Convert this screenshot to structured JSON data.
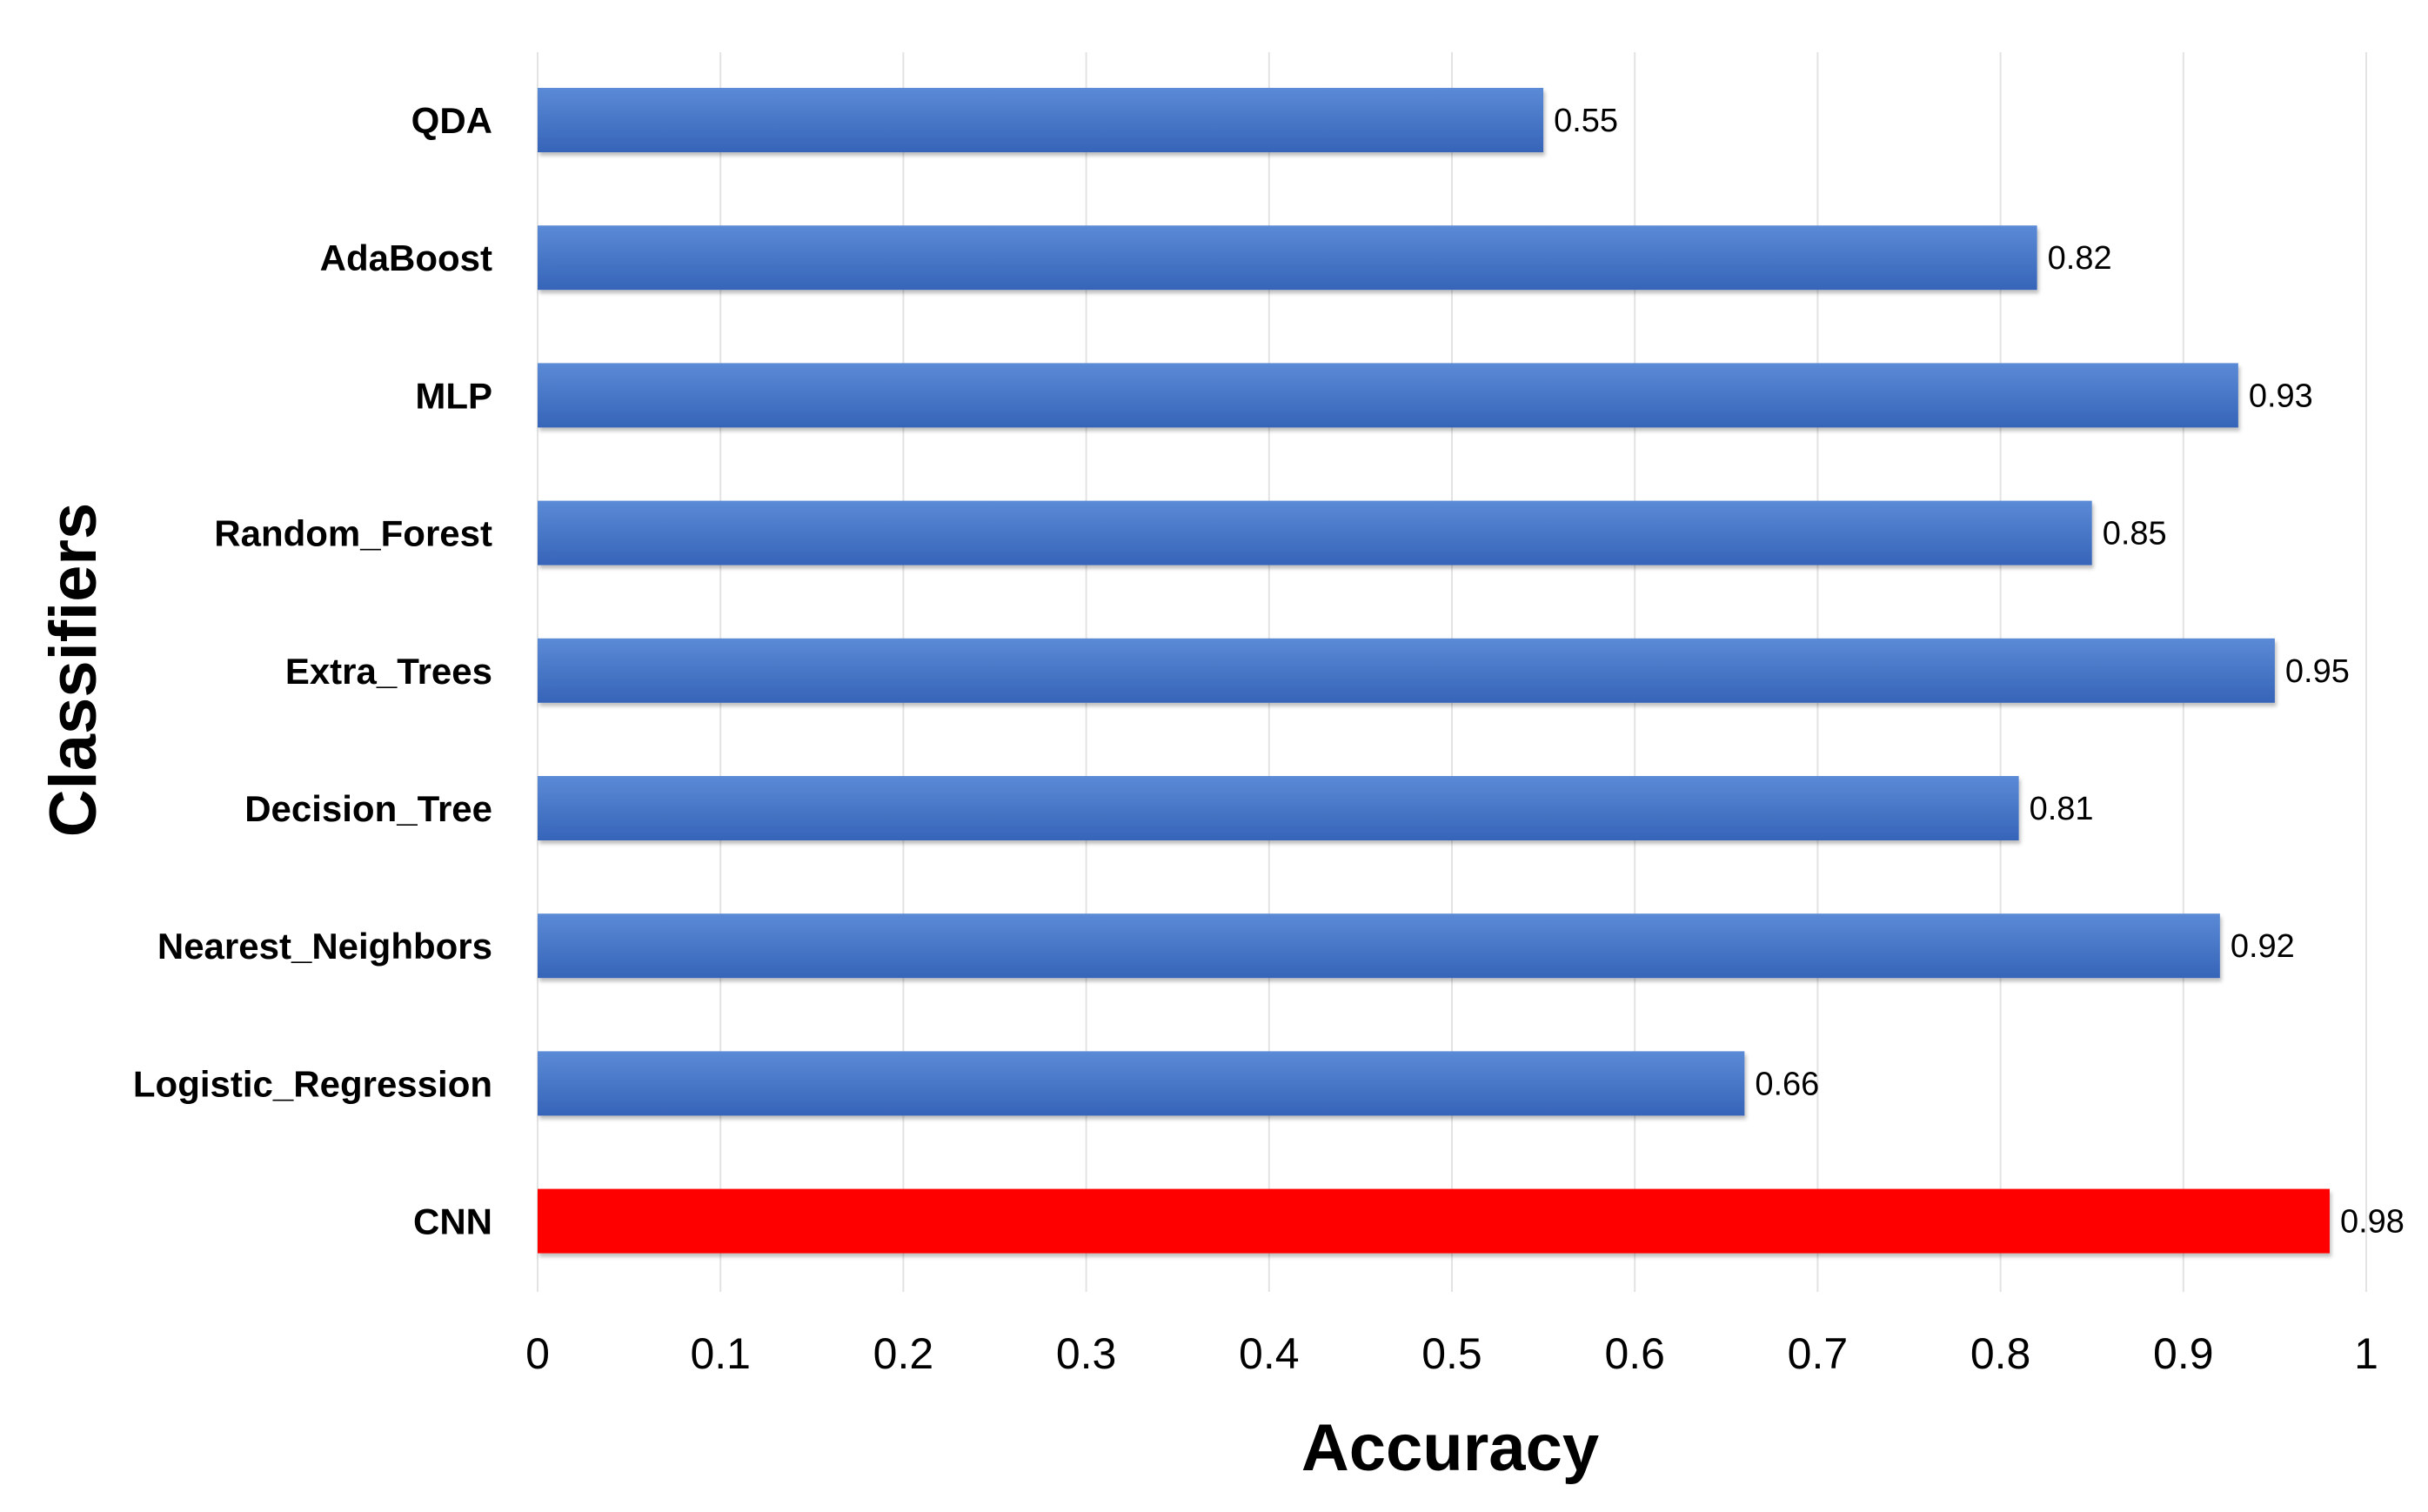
{
  "chart_data": {
    "type": "bar",
    "orientation": "horizontal",
    "categories": [
      "QDA",
      "AdaBoost",
      "MLP",
      "Random_Forest",
      "Extra_Trees",
      "Decision_Tree",
      "Nearest_Neighbors",
      "Logistic_Regression",
      "CNN"
    ],
    "values": [
      0.55,
      0.82,
      0.93,
      0.85,
      0.95,
      0.81,
      0.92,
      0.66,
      0.98
    ],
    "value_labels": [
      "0.55",
      "0.82",
      "0.93",
      "0.85",
      "0.95",
      "0.81",
      "0.92",
      "0.66",
      "0.98"
    ],
    "bar_colors": [
      "#4472C4",
      "#4472C4",
      "#4472C4",
      "#4472C4",
      "#4472C4",
      "#4472C4",
      "#4472C4",
      "#4472C4",
      "#FF0000"
    ],
    "xlabel": "Accuracy",
    "ylabel": "Classifiers",
    "xlim": [
      0,
      1
    ],
    "xticks": [
      "0",
      "0.1",
      "0.2",
      "0.3",
      "0.4",
      "0.5",
      "0.6",
      "0.7",
      "0.8",
      "0.9",
      "1"
    ],
    "grid": "vertical"
  }
}
